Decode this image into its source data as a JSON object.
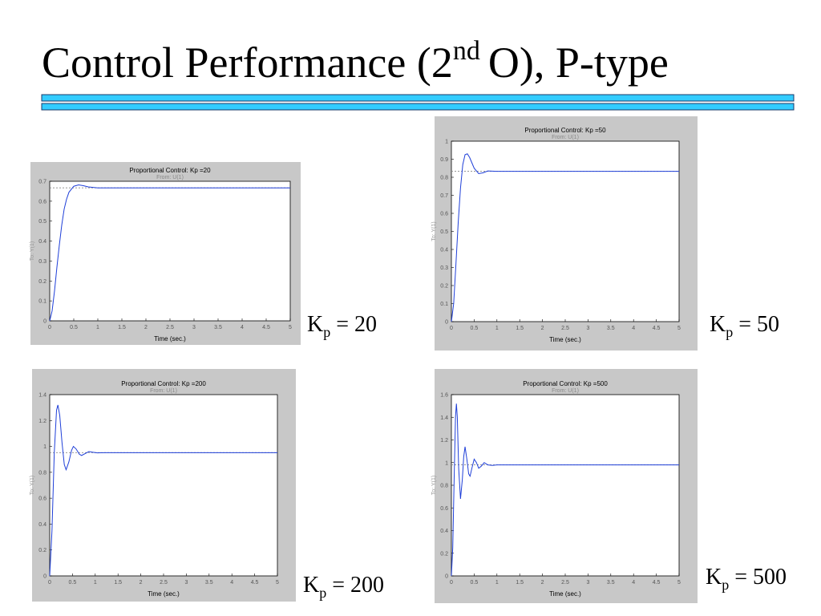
{
  "slide": {
    "title": [
      "Control Performance (2",
      "nd",
      "O), P-type"
    ]
  },
  "labels": [
    {
      "main": "K",
      "sub": "p",
      "rest": "= 20"
    },
    {
      "main": "K",
      "sub": "p",
      "rest": "= 50"
    },
    {
      "main": "K",
      "sub": "p",
      "rest": "= 200"
    },
    {
      "main": "K",
      "sub": "p",
      "rest": "= 500"
    }
  ],
  "chart_data": [
    {
      "type": "line",
      "title": "Proportional Control: Kp =20",
      "subtitle": "From: U(1)",
      "x_label": "Time (sec.)",
      "y_label": "To: Y(1)",
      "color": "#1f3fd8",
      "x": [
        0,
        0.05,
        0.1,
        0.15,
        0.2,
        0.25,
        0.3,
        0.35,
        0.4,
        0.5,
        0.6,
        0.7,
        0.8,
        1,
        1.5,
        5
      ],
      "values": [
        0,
        0.05,
        0.15,
        0.27,
        0.38,
        0.48,
        0.56,
        0.61,
        0.645,
        0.675,
        0.682,
        0.678,
        0.672,
        0.667,
        0.667,
        0.667
      ],
      "final_value": 0.667,
      "xlim": [
        0,
        5
      ],
      "xticks": [
        0,
        0.5,
        1,
        1.5,
        2,
        2.5,
        3,
        3.5,
        4,
        4.5,
        5
      ],
      "ylim": [
        0,
        0.7
      ],
      "yticks": [
        0,
        0.1,
        0.2,
        0.3,
        0.4,
        0.5,
        0.6,
        0.7
      ]
    },
    {
      "type": "line",
      "title": "Proportional Control: Kp =50",
      "subtitle": "From: U(1)",
      "x_label": "Time (sec.)",
      "y_label": "To: Y(1)",
      "color": "#1f3fd8",
      "x": [
        0,
        0.05,
        0.1,
        0.15,
        0.2,
        0.25,
        0.3,
        0.35,
        0.4,
        0.45,
        0.5,
        0.6,
        0.7,
        0.8,
        1,
        5
      ],
      "values": [
        0,
        0.1,
        0.32,
        0.55,
        0.74,
        0.87,
        0.925,
        0.93,
        0.91,
        0.88,
        0.85,
        0.82,
        0.825,
        0.835,
        0.833,
        0.833
      ],
      "final_value": 0.833,
      "xlim": [
        0,
        5
      ],
      "xticks": [
        0,
        0.5,
        1,
        1.5,
        2,
        2.5,
        3,
        3.5,
        4,
        4.5,
        5
      ],
      "ylim": [
        0,
        1
      ],
      "yticks": [
        0,
        0.1,
        0.2,
        0.3,
        0.4,
        0.5,
        0.6,
        0.7,
        0.8,
        0.9,
        1
      ]
    },
    {
      "type": "line",
      "title": "Proportional Control: Kp =200",
      "subtitle": "From: U(1)",
      "x_label": "Time (sec.)",
      "y_label": "To: Y(1)",
      "color": "#1f3fd8",
      "x": [
        0,
        0.05,
        0.1,
        0.15,
        0.18,
        0.22,
        0.27,
        0.32,
        0.36,
        0.42,
        0.48,
        0.52,
        0.58,
        0.65,
        0.7,
        0.78,
        0.86,
        0.95,
        1.05,
        1.2,
        5
      ],
      "values": [
        0,
        0.35,
        0.95,
        1.28,
        1.32,
        1.24,
        1.03,
        0.86,
        0.82,
        0.88,
        0.97,
        1,
        0.98,
        0.94,
        0.93,
        0.945,
        0.96,
        0.955,
        0.95,
        0.952,
        0.952
      ],
      "final_value": 0.952,
      "xlim": [
        0,
        5
      ],
      "xticks": [
        0,
        0.5,
        1,
        1.5,
        2,
        2.5,
        3,
        3.5,
        4,
        4.5,
        5
      ],
      "ylim": [
        0,
        1.4
      ],
      "yticks": [
        0,
        0.2,
        0.4,
        0.6,
        0.8,
        1,
        1.2,
        1.4
      ]
    },
    {
      "type": "line",
      "title": "Proportional Control: Kp =500",
      "subtitle": "From: U(1)",
      "x_label": "Time (sec.)",
      "y_label": "To: Y(1)",
      "color": "#1f3fd8",
      "x": [
        0,
        0.03,
        0.06,
        0.09,
        0.11,
        0.13,
        0.16,
        0.2,
        0.24,
        0.27,
        0.3,
        0.34,
        0.38,
        0.41,
        0.45,
        0.5,
        0.55,
        0.6,
        0.66,
        0.72,
        0.8,
        0.9,
        1,
        1.2,
        5
      ],
      "values": [
        0,
        0.25,
        0.85,
        1.4,
        1.52,
        1.4,
        0.95,
        0.68,
        0.85,
        1.05,
        1.14,
        1.03,
        0.9,
        0.88,
        0.95,
        1.03,
        1,
        0.95,
        0.97,
        1,
        0.98,
        0.975,
        0.98,
        0.98,
        0.98
      ],
      "final_value": 0.98,
      "xlim": [
        0,
        5
      ],
      "xticks": [
        0,
        0.5,
        1,
        1.5,
        2,
        2.5,
        3,
        3.5,
        4,
        4.5,
        5
      ],
      "ylim": [
        0,
        1.6
      ],
      "yticks": [
        0,
        0.2,
        0.4,
        0.6,
        0.8,
        1,
        1.2,
        1.4,
        1.6
      ]
    }
  ]
}
